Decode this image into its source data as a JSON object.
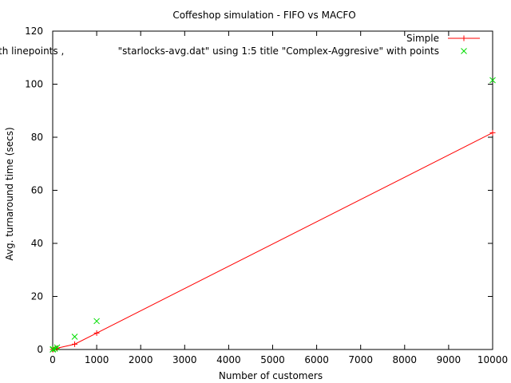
{
  "chart_data": {
    "type": "line",
    "title": "Coffeshop simulation - FIFO vs MACFO",
    "xlabel": "Number of customers",
    "ylabel": "Avg. turnaround time (secs)",
    "xlim": [
      0,
      10000
    ],
    "ylim": [
      0,
      120
    ],
    "x_ticks": [
      "0",
      "1000",
      "2000",
      "3000",
      "4000",
      "5000",
      "6000",
      "7000",
      "8000",
      "9000",
      "10000"
    ],
    "y_ticks": [
      "0",
      "20",
      "40",
      "60",
      "80",
      "100",
      "120"
    ],
    "grid": false,
    "legend_position": "top-right",
    "series": [
      {
        "name": "Simple",
        "style": "linespoints",
        "color": "#ff0000",
        "marker": "plus",
        "x": [
          1,
          10,
          50,
          100,
          500,
          1000,
          10000
        ],
        "y": [
          0,
          0,
          0.2,
          0.5,
          2,
          6.2,
          81.7
        ]
      },
      {
        "name": "Complex-Aggresive",
        "style": "points",
        "color": "#00dd00",
        "marker": "cross",
        "x": [
          1,
          10,
          50,
          100,
          500,
          1000,
          10000
        ],
        "y": [
          0,
          0.1,
          0.3,
          0.8,
          4.8,
          10.7,
          101.5
        ]
      }
    ],
    "legend_entries": [
      "Simple",
      "\"starlocks-avg.dat\" using 1:5 title \"Complex-Aggresive\" with points"
    ],
    "overflow_label": "th linepoints ,"
  }
}
